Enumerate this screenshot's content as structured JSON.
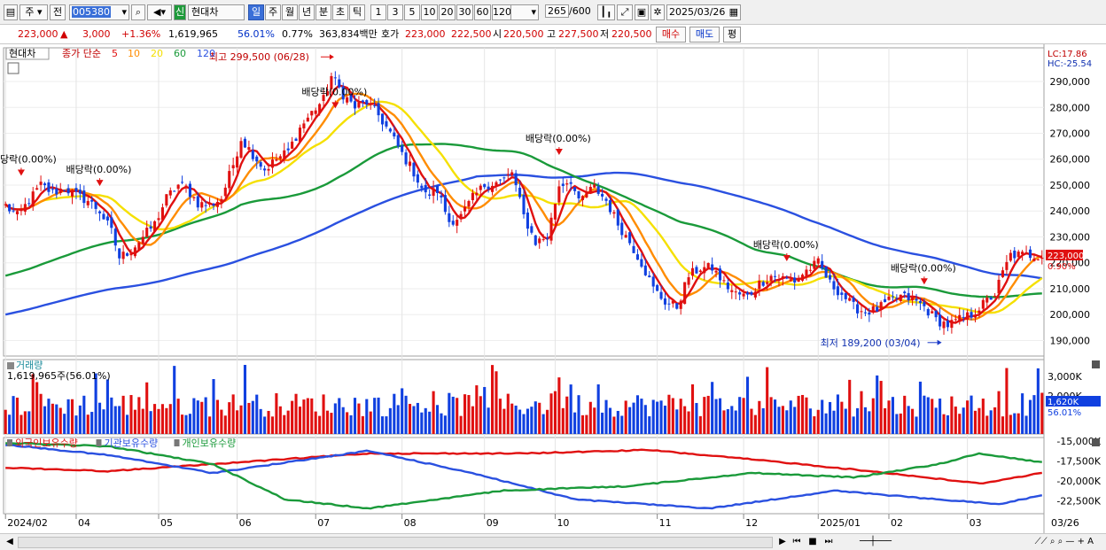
{
  "toolbar": {
    "type": "주",
    "prev": "전",
    "code": "005380",
    "badge": "신",
    "name": "현대차",
    "periods": [
      "일",
      "주",
      "월",
      "년",
      "분",
      "초",
      "틱"
    ],
    "active_period": "일",
    "intervals": [
      "1",
      "3",
      "5",
      "10",
      "20",
      "30",
      "60",
      "120"
    ],
    "count": "265",
    "count_total": "/600",
    "date": "2025/03/26"
  },
  "quote": {
    "price": "223,000",
    "change_arrow": "▲",
    "change": "3,000",
    "change_pct": "+1.36%",
    "volume": "1,619,965",
    "vol_ratio": "56.01%",
    "turnover": "0.77%",
    "amount": "363,834백만",
    "ask_label": "호가",
    "ask1": "223,000",
    "ask2": "222,500",
    "open_label": "시",
    "open": "220,500",
    "high_label": "고",
    "high": "227,500",
    "low_label": "저",
    "low": "220,500",
    "buy": "매수",
    "sell": "매도",
    "avg": "평"
  },
  "colors": {
    "candle_up": "#e01010",
    "candle_down": "#1040e0",
    "ma5": "#e01010",
    "ma10": "#ff8c00",
    "ma20": "#f5e000",
    "ma60": "#1a9a3a",
    "ma120": "#2a50e0"
  },
  "chart_data": [
    {
      "type": "candlestick",
      "legend": {
        "stock": "현대차",
        "desc": "종가 단순",
        "ma_labels": [
          "5",
          "10",
          "20",
          "60",
          "120"
        ]
      },
      "right_labels": [
        "LC:17.86",
        "HC:-25.54"
      ],
      "price_tag": "223,000",
      "pct_tag": "0.90%",
      "y_ticks": [
        190000,
        200000,
        210000,
        220000,
        230000,
        240000,
        250000,
        260000,
        270000,
        280000,
        290000
      ],
      "ylim": [
        184000,
        303000
      ],
      "x_ticks": [
        "2024/02",
        "04",
        "05",
        "06",
        "07",
        "08",
        "09",
        "10",
        "11",
        "12",
        "2025/01",
        "02",
        "03"
      ],
      "x_tick_bar": [
        0,
        18,
        39,
        59,
        79,
        101,
        122,
        140,
        166,
        188,
        207,
        225,
        245
      ],
      "last_date": "03/26",
      "n_bars": 265,
      "anchors": [
        [
          0,
          242000
        ],
        [
          3,
          238000
        ],
        [
          6,
          244000
        ],
        [
          9,
          250000
        ],
        [
          12,
          247000
        ],
        [
          15,
          249000
        ],
        [
          18,
          246000
        ],
        [
          21,
          244000
        ],
        [
          24,
          240000
        ],
        [
          27,
          232000
        ],
        [
          29,
          222000
        ],
        [
          32,
          225000
        ],
        [
          35,
          230000
        ],
        [
          38,
          235000
        ],
        [
          41,
          245000
        ],
        [
          44,
          250000
        ],
        [
          46,
          249000
        ],
        [
          49,
          243000
        ],
        [
          52,
          242000
        ],
        [
          55,
          245000
        ],
        [
          58,
          258000
        ],
        [
          60,
          268000
        ],
        [
          63,
          262000
        ],
        [
          66,
          256000
        ],
        [
          69,
          260000
        ],
        [
          72,
          263000
        ],
        [
          75,
          272000
        ],
        [
          78,
          278000
        ],
        [
          81,
          283000
        ],
        [
          83,
          292000
        ],
        [
          86,
          285000
        ],
        [
          89,
          280000
        ],
        [
          92,
          282000
        ],
        [
          95,
          277000
        ],
        [
          98,
          270000
        ],
        [
          101,
          262000
        ],
        [
          104,
          255000
        ],
        [
          107,
          246000
        ],
        [
          110,
          248000
        ],
        [
          113,
          236000
        ],
        [
          116,
          238000
        ],
        [
          119,
          245000
        ],
        [
          122,
          250000
        ],
        [
          125,
          251000
        ],
        [
          127,
          252000
        ],
        [
          129,
          255000
        ],
        [
          132,
          238000
        ],
        [
          135,
          228000
        ],
        [
          138,
          230000
        ],
        [
          141,
          250000
        ],
        [
          144,
          252000
        ],
        [
          146,
          243000
        ],
        [
          148,
          247000
        ],
        [
          150,
          249000
        ],
        [
          153,
          244000
        ],
        [
          156,
          235000
        ],
        [
          159,
          228000
        ],
        [
          162,
          220000
        ],
        [
          165,
          210000
        ],
        [
          168,
          205000
        ],
        [
          171,
          203000
        ],
        [
          174,
          215000
        ],
        [
          177,
          218000
        ],
        [
          180,
          218000
        ],
        [
          183,
          212000
        ],
        [
          186,
          208000
        ],
        [
          189,
          207000
        ],
        [
          192,
          212000
        ],
        [
          195,
          215000
        ],
        [
          198,
          214000
        ],
        [
          201,
          213000
        ],
        [
          204,
          217000
        ],
        [
          207,
          220000
        ],
        [
          210,
          212000
        ],
        [
          213,
          208000
        ],
        [
          216,
          203000
        ],
        [
          219,
          201000
        ],
        [
          222,
          202000
        ],
        [
          225,
          205000
        ],
        [
          228,
          207000
        ],
        [
          231,
          206000
        ],
        [
          234,
          203000
        ],
        [
          237,
          198000
        ],
        [
          240,
          196000
        ],
        [
          243,
          198000
        ],
        [
          246,
          200000
        ],
        [
          249,
          204000
        ],
        [
          252,
          208000
        ],
        [
          254,
          216000
        ],
        [
          256,
          223000
        ]
      ],
      "annotations": [
        {
          "text": "최고 299,500 (06/28)",
          "bar": 83,
          "price": 299500,
          "kind": "high"
        },
        {
          "text": "최저 189,200 (03/04)",
          "bar": 238,
          "price": 189200,
          "kind": "low"
        },
        {
          "text": "당락(0.00%)",
          "bar": 4,
          "price": 256000,
          "kind": "div"
        },
        {
          "text": "배당락(0.00%)",
          "bar": 24,
          "price": 252000,
          "kind": "div"
        },
        {
          "text": "배당락(0.00%)",
          "bar": 84,
          "price": 282000,
          "kind": "div"
        },
        {
          "text": "배당락(0.00%)",
          "bar": 141,
          "price": 264000,
          "kind": "div"
        },
        {
          "text": "배당락(0.00%)",
          "bar": 199,
          "price": 223000,
          "kind": "div"
        },
        {
          "text": "배당락(0.00%)",
          "bar": 234,
          "price": 214000,
          "kind": "div"
        }
      ]
    },
    {
      "type": "bar",
      "title": "거래량",
      "value_label": "1,619,965주(56.01%)",
      "y_ticks": [
        "3,000K",
        "2,000K"
      ],
      "tag1": "1,620K",
      "tag2": "56.01%"
    },
    {
      "type": "line",
      "series": [
        {
          "name": "외국인보유수량",
          "color": "#e01010"
        },
        {
          "name": "기관보유수량",
          "color": "#2a50e0"
        },
        {
          "name": "개인보유수량",
          "color": "#1a9a3a"
        }
      ],
      "y_ticks": [
        "-15,000K",
        "-17,500K",
        "-20,000K",
        "-22,500K"
      ]
    }
  ],
  "scrollbar": {
    "left": "◀",
    "right": "▶"
  }
}
